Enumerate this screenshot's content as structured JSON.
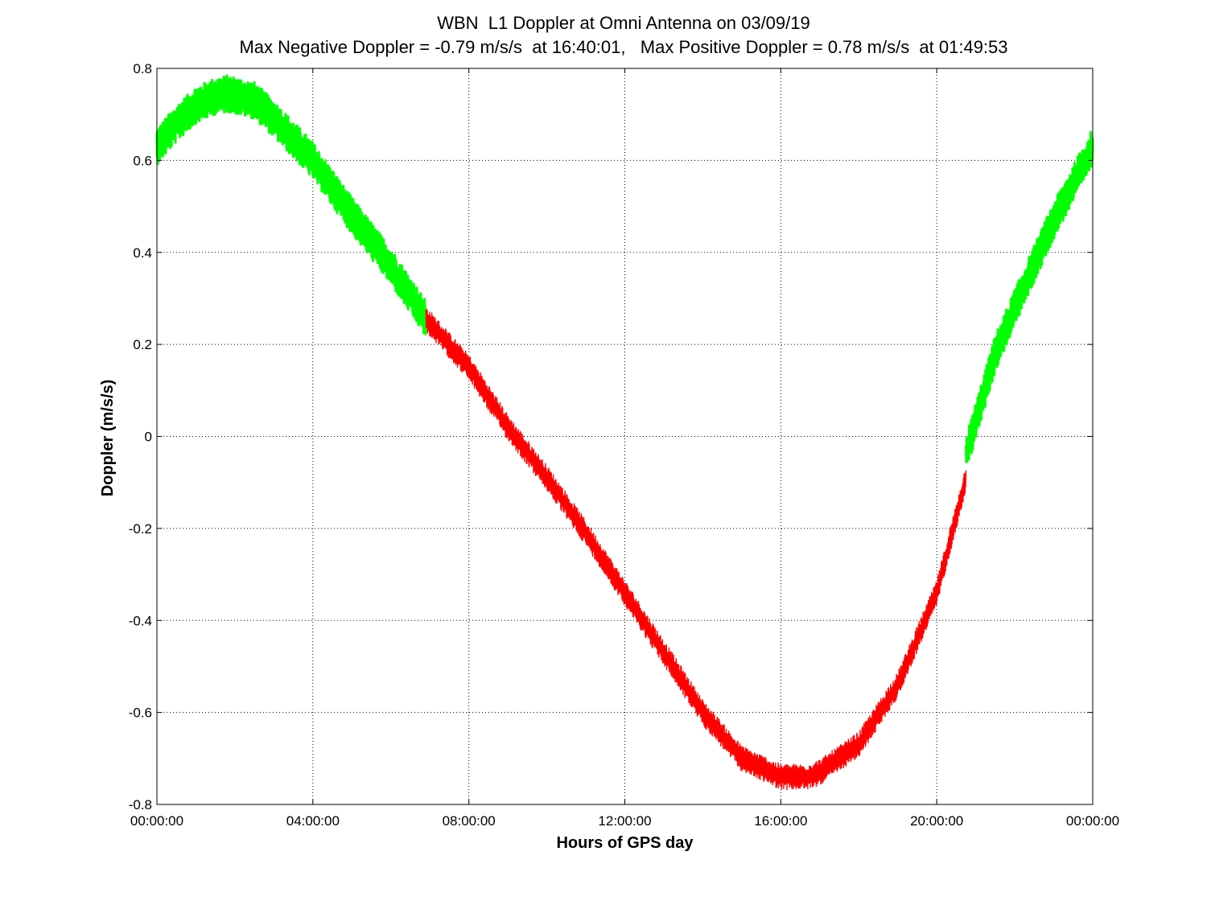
{
  "title_line1": "WBN  L1 Doppler at Omni Antenna on 03/09/19",
  "title_line2": "Max Negative Doppler = -0.79 m/s/s  at 16:40:01,   Max Positive Doppler = 0.78 m/s/s  at 01:49:53",
  "colors": {
    "in_view": "#00ff00",
    "out_of_view": "#ff0000",
    "grid": "#000000"
  },
  "chart_data": {
    "type": "line",
    "title": "WBN  L1 Doppler at Omni Antenna on 03/09/19",
    "subtitle": "Max Negative Doppler = -0.79 m/s/s  at 16:40:01,   Max Positive Doppler = 0.78 m/s/s  at 01:49:53",
    "xlabel": "Hours of GPS day",
    "ylabel": "Doppler (m/s/s)",
    "xlim": [
      0,
      24
    ],
    "ylim": [
      -0.8,
      0.8
    ],
    "grid": true,
    "x_ticks": [
      0,
      4,
      8,
      12,
      16,
      20,
      24
    ],
    "x_tick_labels": [
      "00:00:00",
      "04:00:00",
      "08:00:00",
      "12:00:00",
      "16:00:00",
      "20:00:00",
      "00:00:00"
    ],
    "y_ticks": [
      0.8,
      0.6,
      0.4,
      0.2,
      0,
      -0.2,
      -0.4,
      -0.6,
      -0.8
    ],
    "y_tick_labels": [
      "0.8",
      "0.6",
      "0.4",
      "0.2",
      "0",
      "-0.2",
      "-0.4",
      "-0.6",
      "-0.8"
    ],
    "series": [
      {
        "color": "#00ff00",
        "x": [
          0,
          0.5,
          1.0,
          1.5,
          1.83,
          2.5,
          3.0,
          4.0,
          5.0,
          6.0,
          6.9
        ],
        "y": [
          0.63,
          0.68,
          0.72,
          0.74,
          0.745,
          0.73,
          0.69,
          0.6,
          0.48,
          0.37,
          0.255
        ]
      },
      {
        "color": "#ff0000",
        "x": [
          6.9,
          8.0,
          9.0,
          10.0,
          11.0,
          12.0,
          13.0,
          14.0,
          15.0,
          16.0,
          16.67,
          17.0,
          18.0,
          19.0,
          20.0,
          20.75
        ],
        "y": [
          0.255,
          0.15,
          0.02,
          -0.09,
          -0.21,
          -0.34,
          -0.47,
          -0.6,
          -0.7,
          -0.74,
          -0.74,
          -0.73,
          -0.67,
          -0.54,
          -0.34,
          -0.09
        ]
      },
      {
        "color": "#00ff00",
        "x": [
          20.75,
          21.5,
          22.0,
          23.0,
          24.0
        ],
        "y": [
          -0.04,
          0.18,
          0.28,
          0.47,
          0.63
        ]
      }
    ]
  }
}
